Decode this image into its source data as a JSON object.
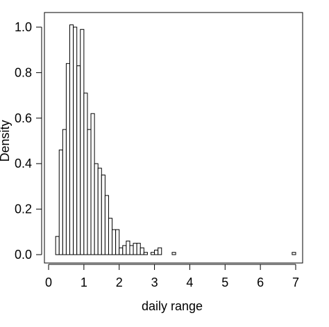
{
  "chart_data": {
    "type": "bar",
    "title": "",
    "xlabel": "daily range",
    "ylabel": "Density",
    "xlim": [
      0,
      7
    ],
    "ylim": [
      0,
      1.0
    ],
    "x_ticks": [
      "0",
      "1",
      "2",
      "3",
      "4",
      "5",
      "6",
      "7"
    ],
    "y_ticks": [
      "0.0",
      "0.2",
      "0.4",
      "0.6",
      "0.8",
      "1.0"
    ],
    "bin_width": 0.1,
    "bins": [
      {
        "start": 0.2,
        "density": 0.08
      },
      {
        "start": 0.3,
        "density": 0.46
      },
      {
        "start": 0.4,
        "density": 0.55
      },
      {
        "start": 0.5,
        "density": 0.84
      },
      {
        "start": 0.6,
        "density": 1.01
      },
      {
        "start": 0.7,
        "density": 1.0
      },
      {
        "start": 0.8,
        "density": 0.83
      },
      {
        "start": 0.9,
        "density": 0.99
      },
      {
        "start": 1.0,
        "density": 0.71
      },
      {
        "start": 1.1,
        "density": 0.55
      },
      {
        "start": 1.2,
        "density": 0.62
      },
      {
        "start": 1.3,
        "density": 0.4
      },
      {
        "start": 1.4,
        "density": 0.38
      },
      {
        "start": 1.5,
        "density": 0.35
      },
      {
        "start": 1.6,
        "density": 0.26
      },
      {
        "start": 1.7,
        "density": 0.16
      },
      {
        "start": 1.8,
        "density": 0.11
      },
      {
        "start": 1.9,
        "density": 0.11
      },
      {
        "start": 2.0,
        "density": 0.03
      },
      {
        "start": 2.1,
        "density": 0.04
      },
      {
        "start": 2.2,
        "density": 0.06
      },
      {
        "start": 2.3,
        "density": 0.04
      },
      {
        "start": 2.4,
        "density": 0.05
      },
      {
        "start": 2.5,
        "density": 0.05
      },
      {
        "start": 2.6,
        "density": 0.03
      },
      {
        "start": 2.7,
        "density": 0.01
      },
      {
        "start": 2.8,
        "density": 0.0
      },
      {
        "start": 2.9,
        "density": 0.01
      },
      {
        "start": 3.0,
        "density": 0.02
      },
      {
        "start": 3.1,
        "density": 0.03
      },
      {
        "start": 3.5,
        "density": 0.01
      },
      {
        "start": 6.9,
        "density": 0.01
      }
    ],
    "grid": false,
    "legend": "none"
  }
}
